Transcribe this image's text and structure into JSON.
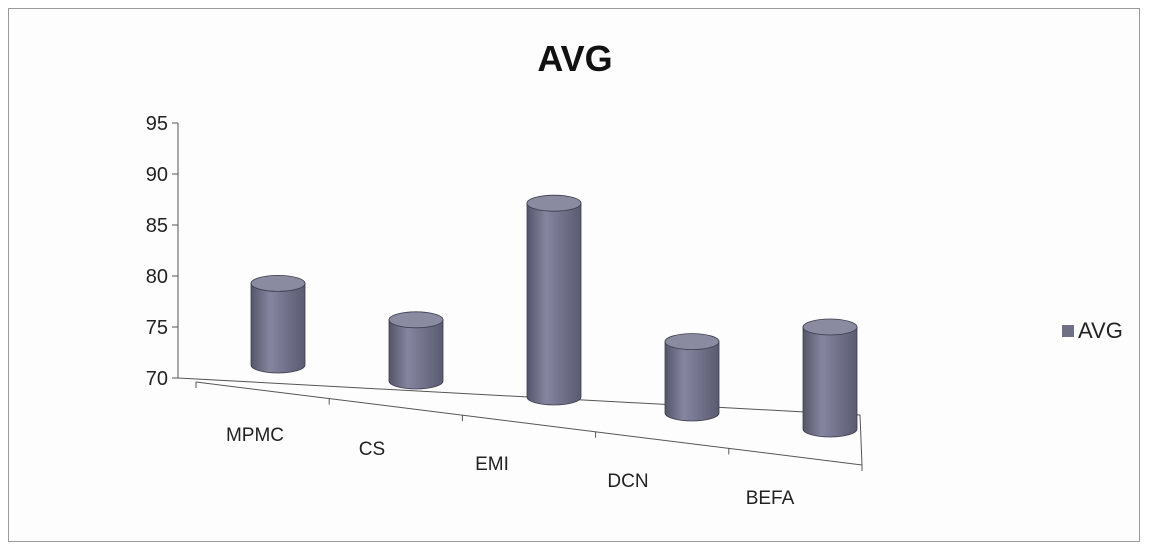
{
  "chart_data": {
    "type": "bar",
    "style": "3d-cylinder",
    "title": "AVG",
    "categories": [
      "MPMC",
      "CS",
      "EMI",
      "DCN",
      "BEFA"
    ],
    "series": [
      {
        "name": "AVG",
        "values": [
          78,
          76,
          89,
          77,
          80
        ]
      }
    ],
    "y_ticks": [
      "95",
      "90",
      "85",
      "80",
      "75",
      "70"
    ],
    "ylim": [
      70,
      95
    ],
    "xlabel": "",
    "ylabel": "",
    "legend_position": "right",
    "grid": false,
    "colors": {
      "bar_body": "#6f6f86",
      "bar_top": "#8a8aa0",
      "axis": "#555555"
    }
  }
}
